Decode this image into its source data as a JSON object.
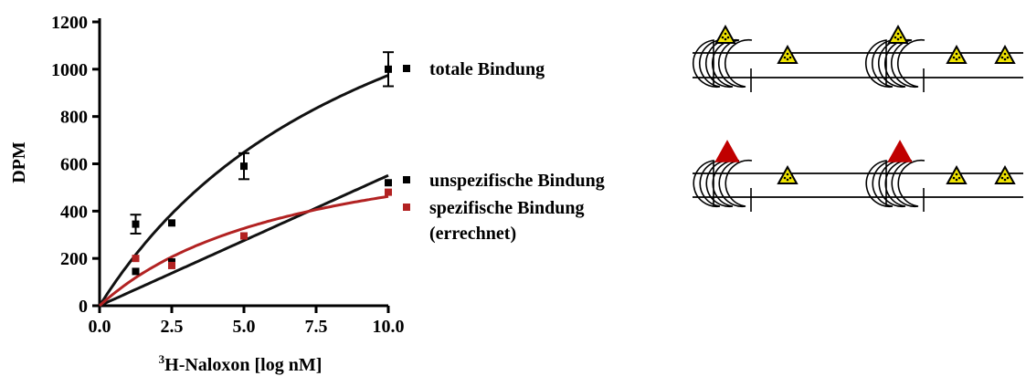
{
  "chart_data": {
    "type": "line",
    "xlabel_sup": "3",
    "xlabel": "H-Naloxon [log nM]",
    "ylabel": "DPM",
    "xlim": [
      0,
      10
    ],
    "ylim": [
      0,
      1200
    ],
    "x_ticks": [
      "0.0",
      "2.5",
      "5.0",
      "7.5",
      "10.0"
    ],
    "y_ticks": [
      "0",
      "200",
      "400",
      "600",
      "800",
      "1000",
      "1200"
    ],
    "x": [
      1.25,
      2.5,
      5.0,
      10.0
    ],
    "series": [
      {
        "name": "totale Bindung",
        "color": "#000000",
        "values": [
          345,
          350,
          590,
          1000
        ],
        "errors": [
          40,
          0,
          55,
          72
        ],
        "fit": "saturation"
      },
      {
        "name": "unspezifische Bindung",
        "color": "#000000",
        "values": [
          145,
          185,
          295,
          520
        ],
        "errors": [
          0,
          0,
          0,
          0
        ],
        "fit": "linear"
      },
      {
        "name": "spezifische Bindung",
        "name_line2": "(errechnet)",
        "color": "#b22222",
        "values": [
          200,
          170,
          295,
          480
        ],
        "errors": [
          0,
          0,
          0,
          0
        ],
        "fit": "saturation"
      }
    ]
  },
  "diagram": {
    "ligand_color": "#f2e600",
    "blocked_color": "#c00000",
    "outline_color": "#000000"
  }
}
